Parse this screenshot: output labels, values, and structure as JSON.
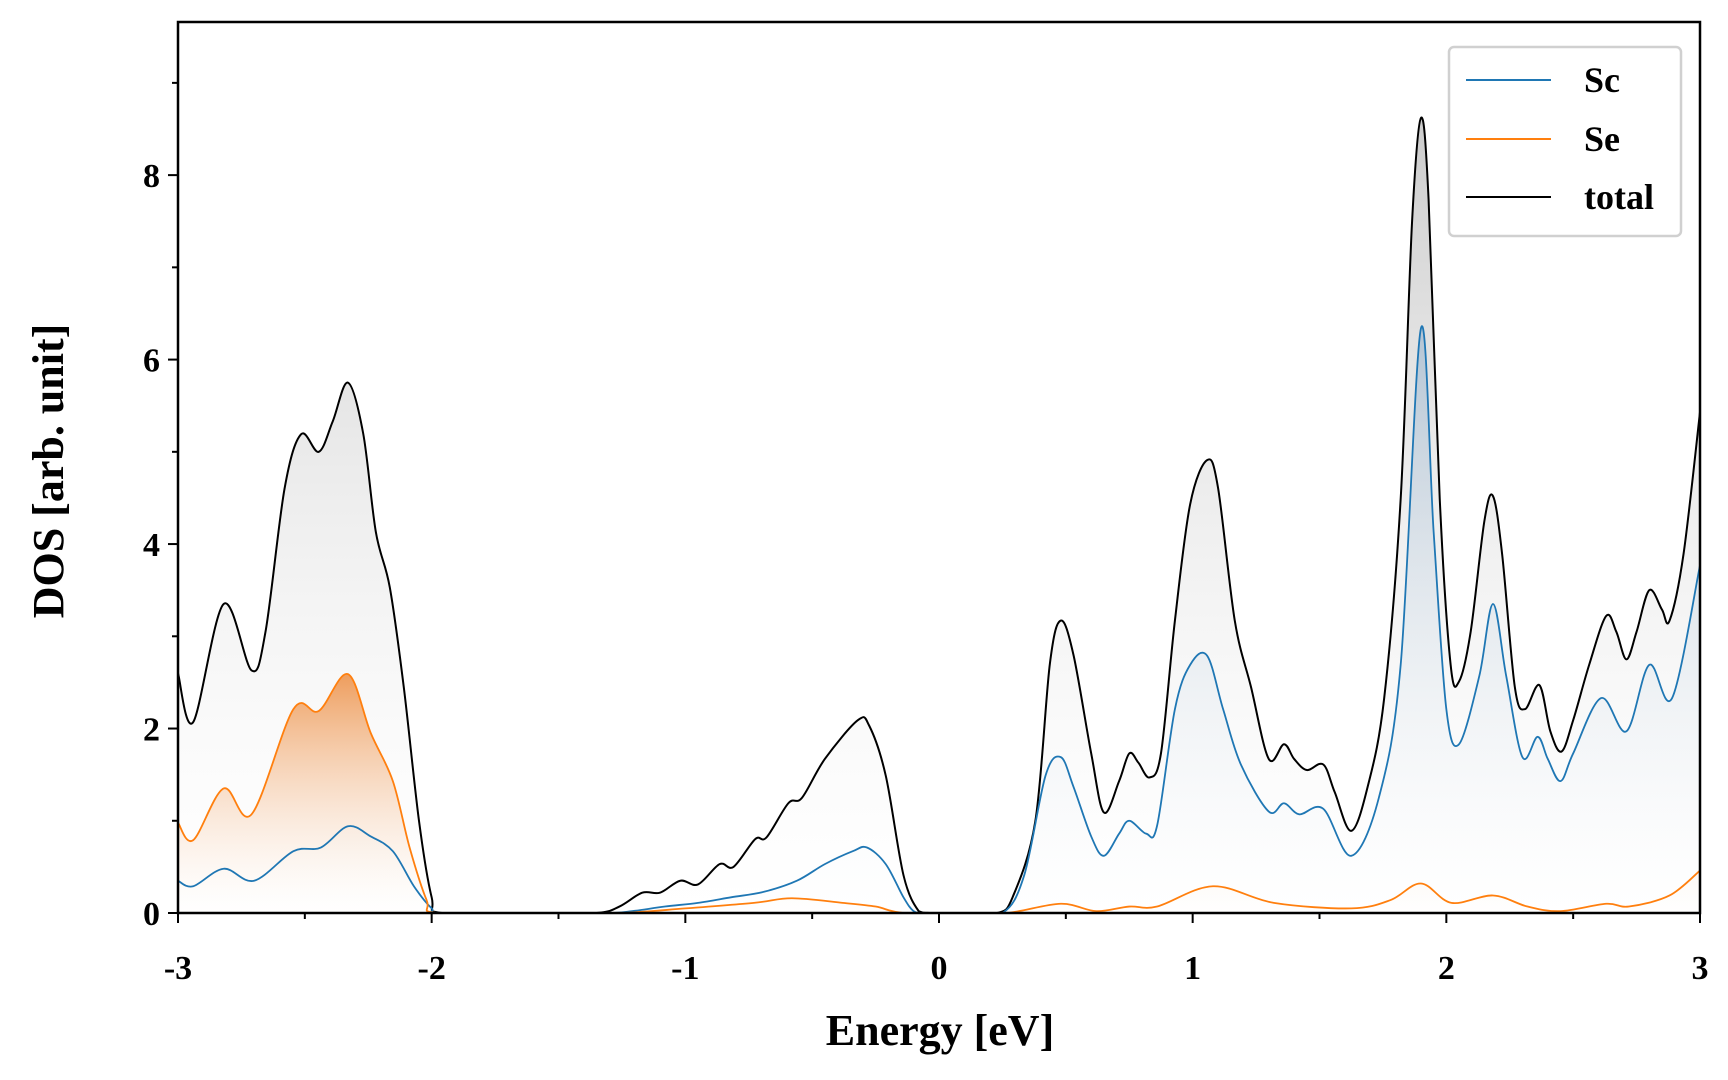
{
  "chart_data": {
    "type": "line",
    "title": "",
    "xlabel": "Energy [eV]",
    "ylabel": "DOS [arb. unit]",
    "xlim": [
      -3,
      3
    ],
    "ylim": [
      0,
      9.66
    ],
    "xticks": [
      -3,
      -2,
      -1,
      0,
      1,
      2,
      3
    ],
    "xtick_labels": [
      "-3",
      "-2",
      "-1",
      "0",
      "1",
      "2",
      "3"
    ],
    "yticks": [
      0,
      2,
      4,
      6,
      8
    ],
    "ytick_labels": [
      "0",
      "2",
      "4",
      "6",
      "8"
    ],
    "grid": false,
    "legend_placement": "top-right",
    "series": [
      {
        "name": "Sc",
        "color": "#1f77b4",
        "points": [
          [
            -3,
            0.35
          ],
          [
            -2.94,
            0.29
          ],
          [
            -2.82,
            0.48
          ],
          [
            -2.7,
            0.35
          ],
          [
            -2.545,
            0.67
          ],
          [
            -2.437,
            0.71
          ],
          [
            -2.33,
            0.94
          ],
          [
            -2.24,
            0.83
          ],
          [
            -2.153,
            0.67
          ],
          [
            -2.07,
            0.29
          ],
          [
            -2.0,
            0.05
          ],
          [
            -1.96,
            0
          ],
          [
            -1.5,
            0
          ],
          [
            -1.3,
            0
          ],
          [
            -1.21,
            0.02
          ],
          [
            -1.08,
            0.07
          ],
          [
            -0.95,
            0.11
          ],
          [
            -0.82,
            0.17
          ],
          [
            -0.69,
            0.23
          ],
          [
            -0.56,
            0.35
          ],
          [
            -0.45,
            0.53
          ],
          [
            -0.34,
            0.67
          ],
          [
            -0.284,
            0.71
          ],
          [
            -0.21,
            0.53
          ],
          [
            -0.14,
            0.17
          ],
          [
            -0.1,
            0.02
          ],
          [
            -0.06,
            0
          ],
          [
            0.1,
            0
          ],
          [
            0.25,
            0
          ],
          [
            0.336,
            0.41
          ],
          [
            0.42,
            1.49
          ],
          [
            0.48,
            1.69
          ],
          [
            0.53,
            1.37
          ],
          [
            0.6,
            0.83
          ],
          [
            0.65,
            0.62
          ],
          [
            0.71,
            0.86
          ],
          [
            0.75,
            1.0
          ],
          [
            0.817,
            0.86
          ],
          [
            0.86,
            0.95
          ],
          [
            0.93,
            2.21
          ],
          [
            0.99,
            2.69
          ],
          [
            1.057,
            2.79
          ],
          [
            1.12,
            2.21
          ],
          [
            1.19,
            1.61
          ],
          [
            1.3,
            1.1
          ],
          [
            1.36,
            1.19
          ],
          [
            1.42,
            1.07
          ],
          [
            1.515,
            1.13
          ],
          [
            1.625,
            0.62
          ],
          [
            1.734,
            1.25
          ],
          [
            1.82,
            2.69
          ],
          [
            1.9,
            6.34
          ],
          [
            1.95,
            4.13
          ],
          [
            2.0,
            2.21
          ],
          [
            2.05,
            1.83
          ],
          [
            2.13,
            2.57
          ],
          [
            2.184,
            3.35
          ],
          [
            2.236,
            2.57
          ],
          [
            2.3,
            1.69
          ],
          [
            2.36,
            1.91
          ],
          [
            2.4,
            1.67
          ],
          [
            2.45,
            1.43
          ],
          [
            2.5,
            1.73
          ],
          [
            2.61,
            2.33
          ],
          [
            2.71,
            1.97
          ],
          [
            2.8,
            2.69
          ],
          [
            2.89,
            2.33
          ],
          [
            3.0,
            3.77
          ]
        ]
      },
      {
        "name": "Se",
        "color": "#ff7f0e",
        "points": [
          [
            -3,
            0.98
          ],
          [
            -2.94,
            0.79
          ],
          [
            -2.82,
            1.35
          ],
          [
            -2.71,
            1.07
          ],
          [
            -2.545,
            2.21
          ],
          [
            -2.445,
            2.19
          ],
          [
            -2.33,
            2.59
          ],
          [
            -2.24,
            1.95
          ],
          [
            -2.153,
            1.43
          ],
          [
            -2.087,
            0.71
          ],
          [
            -2.02,
            0.14
          ],
          [
            -1.98,
            0
          ],
          [
            -1.6,
            0
          ],
          [
            -1.26,
            0
          ],
          [
            -1.0,
            0.05
          ],
          [
            -0.73,
            0.11
          ],
          [
            -0.58,
            0.16
          ],
          [
            -0.38,
            0.11
          ],
          [
            -0.25,
            0.07
          ],
          [
            -0.14,
            0
          ],
          [
            0.1,
            0
          ],
          [
            0.27,
            0
          ],
          [
            0.48,
            0.1
          ],
          [
            0.62,
            0.02
          ],
          [
            0.75,
            0.07
          ],
          [
            0.86,
            0.07
          ],
          [
            1.08,
            0.29
          ],
          [
            1.32,
            0.11
          ],
          [
            1.625,
            0.05
          ],
          [
            1.78,
            0.14
          ],
          [
            1.9,
            0.32
          ],
          [
            2.02,
            0.11
          ],
          [
            2.184,
            0.19
          ],
          [
            2.32,
            0.07
          ],
          [
            2.45,
            0.02
          ],
          [
            2.63,
            0.1
          ],
          [
            2.72,
            0.07
          ],
          [
            2.88,
            0.19
          ],
          [
            3.0,
            0.46
          ]
        ]
      },
      {
        "name": "total",
        "color": "#000000",
        "points": [
          [
            -3,
            2.6
          ],
          [
            -2.94,
            2.07
          ],
          [
            -2.82,
            3.35
          ],
          [
            -2.71,
            2.63
          ],
          [
            -2.655,
            3.05
          ],
          [
            -2.58,
            4.6
          ],
          [
            -2.515,
            5.19
          ],
          [
            -2.445,
            5.0
          ],
          [
            -2.39,
            5.33
          ],
          [
            -2.33,
            5.75
          ],
          [
            -2.27,
            5.2
          ],
          [
            -2.22,
            4.13
          ],
          [
            -2.165,
            3.53
          ],
          [
            -2.11,
            2.45
          ],
          [
            -2.05,
            1.0
          ],
          [
            -2.0,
            0.17
          ],
          [
            -1.96,
            0
          ],
          [
            -1.6,
            0
          ],
          [
            -1.35,
            0
          ],
          [
            -1.26,
            0.07
          ],
          [
            -1.17,
            0.22
          ],
          [
            -1.1,
            0.22
          ],
          [
            -1.02,
            0.35
          ],
          [
            -0.95,
            0.31
          ],
          [
            -0.865,
            0.53
          ],
          [
            -0.81,
            0.5
          ],
          [
            -0.725,
            0.8
          ],
          [
            -0.68,
            0.82
          ],
          [
            -0.594,
            1.19
          ],
          [
            -0.54,
            1.25
          ],
          [
            -0.45,
            1.67
          ],
          [
            -0.32,
            2.09
          ],
          [
            -0.275,
            2.03
          ],
          [
            -0.21,
            1.49
          ],
          [
            -0.14,
            0.41
          ],
          [
            -0.08,
            0.02
          ],
          [
            -0.035,
            0
          ],
          [
            0.1,
            0
          ],
          [
            0.23,
            0
          ],
          [
            0.29,
            0.17
          ],
          [
            0.38,
            1.0
          ],
          [
            0.437,
            2.7
          ],
          [
            0.48,
            3.17
          ],
          [
            0.53,
            2.8
          ],
          [
            0.6,
            1.73
          ],
          [
            0.65,
            1.09
          ],
          [
            0.71,
            1.43
          ],
          [
            0.75,
            1.73
          ],
          [
            0.786,
            1.63
          ],
          [
            0.83,
            1.47
          ],
          [
            0.875,
            1.73
          ],
          [
            0.93,
            3.17
          ],
          [
            0.99,
            4.43
          ],
          [
            1.057,
            4.91
          ],
          [
            1.1,
            4.61
          ],
          [
            1.166,
            3.17
          ],
          [
            1.23,
            2.45
          ],
          [
            1.3,
            1.67
          ],
          [
            1.36,
            1.83
          ],
          [
            1.4,
            1.67
          ],
          [
            1.45,
            1.55
          ],
          [
            1.515,
            1.61
          ],
          [
            1.56,
            1.31
          ],
          [
            1.625,
            0.89
          ],
          [
            1.69,
            1.37
          ],
          [
            1.755,
            2.33
          ],
          [
            1.82,
            4.49
          ],
          [
            1.865,
            7.5
          ],
          [
            1.9,
            8.62
          ],
          [
            1.93,
            7.74
          ],
          [
            1.974,
            4.49
          ],
          [
            2.017,
            2.69
          ],
          [
            2.05,
            2.51
          ],
          [
            2.096,
            3.05
          ],
          [
            2.15,
            4.25
          ],
          [
            2.184,
            4.52
          ],
          [
            2.22,
            3.89
          ],
          [
            2.27,
            2.45
          ],
          [
            2.31,
            2.21
          ],
          [
            2.367,
            2.47
          ],
          [
            2.41,
            1.97
          ],
          [
            2.454,
            1.75
          ],
          [
            2.5,
            2.09
          ],
          [
            2.563,
            2.69
          ],
          [
            2.63,
            3.22
          ],
          [
            2.67,
            3.05
          ],
          [
            2.71,
            2.75
          ],
          [
            2.75,
            3.05
          ],
          [
            2.8,
            3.5
          ],
          [
            2.85,
            3.29
          ],
          [
            2.88,
            3.17
          ],
          [
            2.935,
            3.89
          ],
          [
            3.0,
            5.43
          ]
        ]
      }
    ]
  }
}
